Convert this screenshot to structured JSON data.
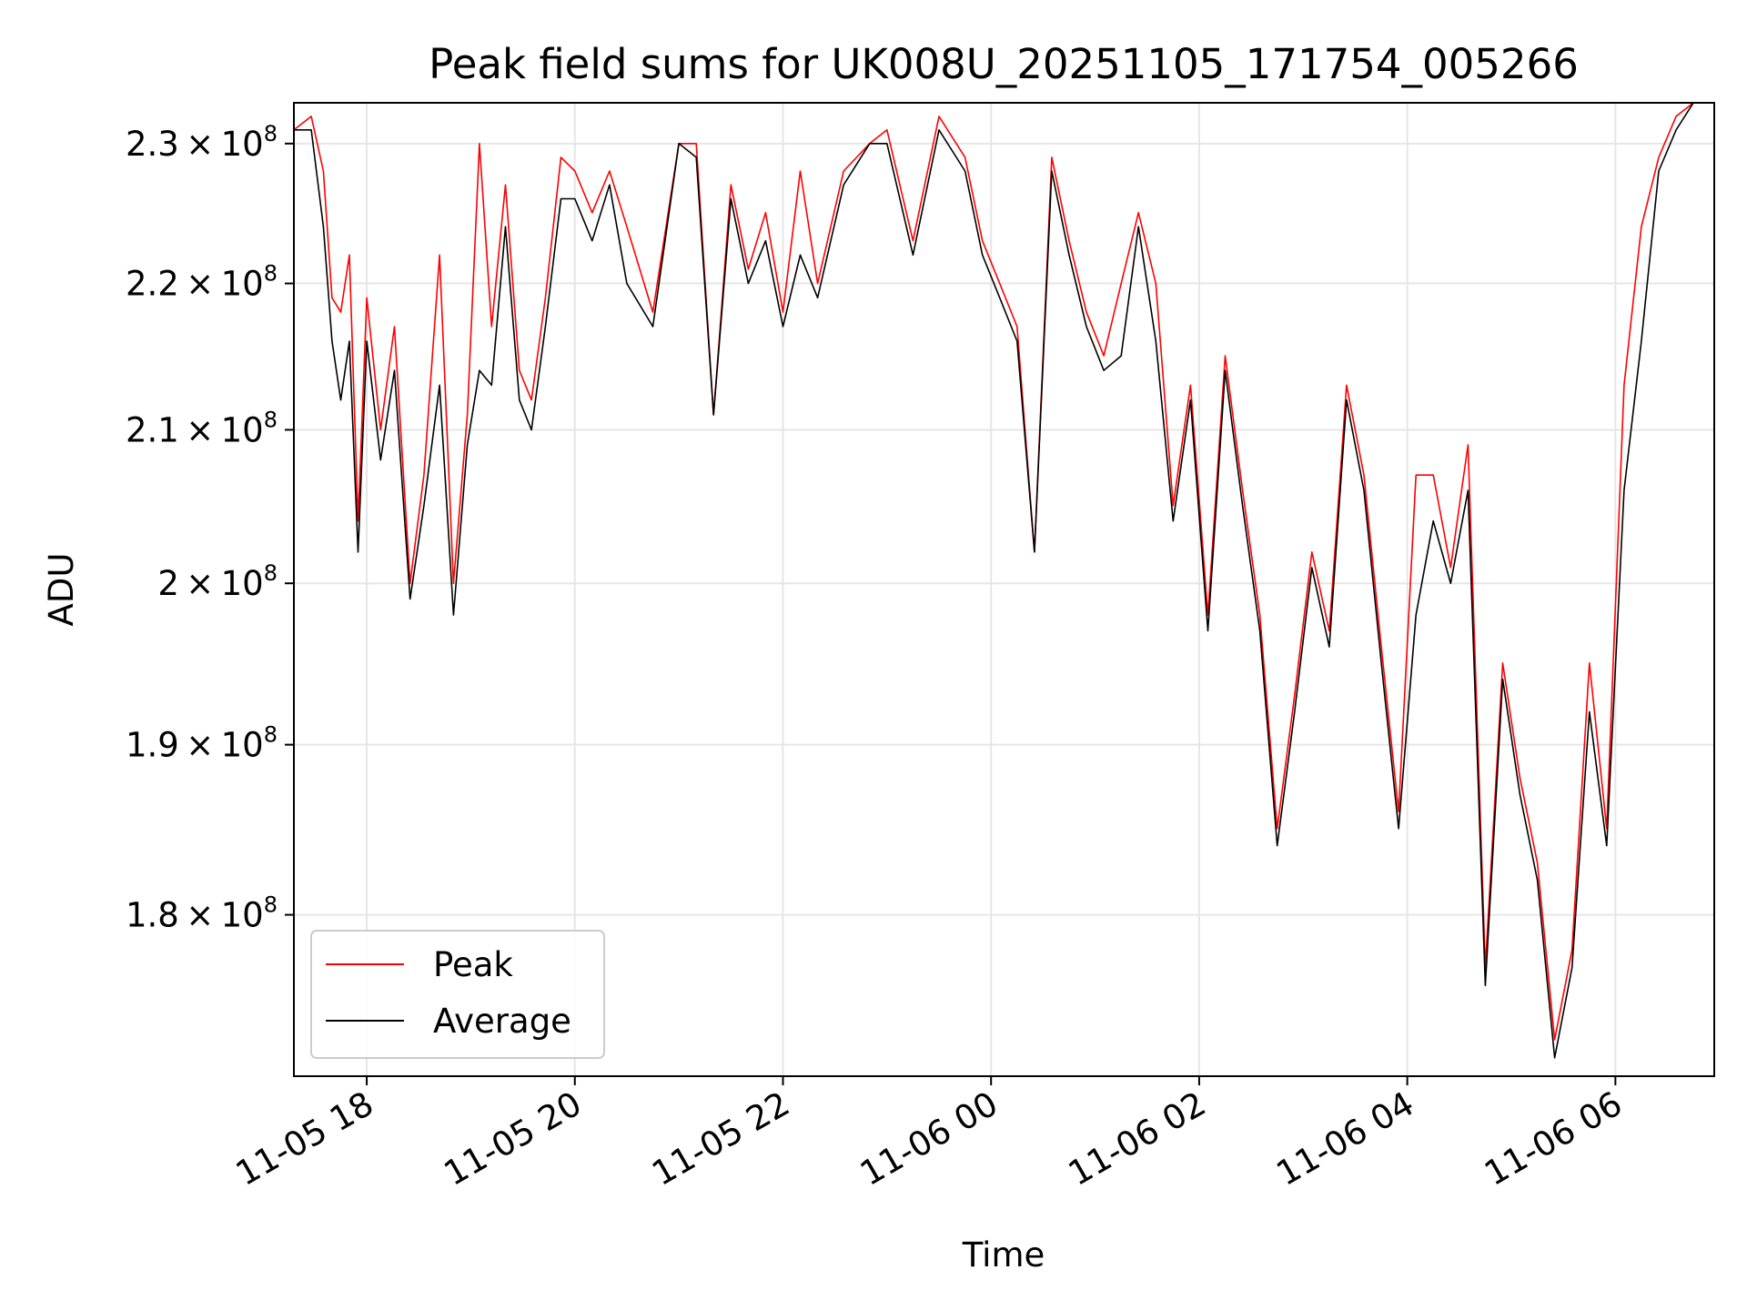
{
  "chart_data": {
    "type": "line",
    "title": "Peak field sums for UK008U_20251105_171754_005266",
    "xlabel": "Time",
    "ylabel": "ADU",
    "yscale": "log",
    "grid": true,
    "legend_position": "lower-left",
    "x_ticks": [
      "2025-11-05T18:00",
      "2025-11-05T20:00",
      "2025-11-05T22:00",
      "2025-11-06T00:00",
      "2025-11-06T02:00",
      "2025-11-06T04:00",
      "2025-11-06T06:00"
    ],
    "x_tick_labels": [
      "11-05 18",
      "11-05 20",
      "11-05 22",
      "11-06 00",
      "11-06 02",
      "11-06 04",
      "11-06 06"
    ],
    "xlim": [
      "2025-11-05T17:18",
      "2025-11-06T06:57"
    ],
    "y_ticks": [
      180000000.0,
      190000000.0,
      200000000.0,
      210000000.0,
      220000000.0,
      230000000.0
    ],
    "y_tick_labels": [
      {
        "mantissa": "1.8",
        "times": "×",
        "base": "10",
        "exp": "8"
      },
      {
        "mantissa": "1.9",
        "times": "×",
        "base": "10",
        "exp": "8"
      },
      {
        "mantissa": "2",
        "times": "×",
        "base": "10",
        "exp": "8"
      },
      {
        "mantissa": "2.1",
        "times": "×",
        "base": "10",
        "exp": "8"
      },
      {
        "mantissa": "2.2",
        "times": "×",
        "base": "10",
        "exp": "8"
      },
      {
        "mantissa": "2.3",
        "times": "×",
        "base": "10",
        "exp": "8"
      }
    ],
    "ylim": [
      171000000.0,
      233000000.0
    ],
    "series": [
      {
        "name": "Peak",
        "color": "#ff0000"
      },
      {
        "name": "Average",
        "color": "#000000"
      }
    ],
    "x": [
      "2025-11-05T17:18",
      "2025-11-05T17:28",
      "2025-11-05T17:35",
      "2025-11-05T17:40",
      "2025-11-05T17:45",
      "2025-11-05T17:50",
      "2025-11-05T17:55",
      "2025-11-05T18:00",
      "2025-11-05T18:08",
      "2025-11-05T18:16",
      "2025-11-05T18:25",
      "2025-11-05T18:33",
      "2025-11-05T18:42",
      "2025-11-05T18:50",
      "2025-11-05T18:58",
      "2025-11-05T19:05",
      "2025-11-05T19:12",
      "2025-11-05T19:20",
      "2025-11-05T19:28",
      "2025-11-05T19:35",
      "2025-11-05T19:43",
      "2025-11-05T19:52",
      "2025-11-05T20:00",
      "2025-11-05T20:10",
      "2025-11-05T20:20",
      "2025-11-05T20:30",
      "2025-11-05T20:45",
      "2025-11-05T21:00",
      "2025-11-05T21:10",
      "2025-11-05T21:20",
      "2025-11-05T21:30",
      "2025-11-05T21:40",
      "2025-11-05T21:50",
      "2025-11-05T22:00",
      "2025-11-05T22:10",
      "2025-11-05T22:20",
      "2025-11-05T22:35",
      "2025-11-05T22:50",
      "2025-11-05T23:00",
      "2025-11-05T23:15",
      "2025-11-05T23:30",
      "2025-11-05T23:45",
      "2025-11-05T23:55",
      "2025-11-06T00:05",
      "2025-11-06T00:15",
      "2025-11-06T00:25",
      "2025-11-06T00:35",
      "2025-11-06T00:45",
      "2025-11-06T00:55",
      "2025-11-06T01:05",
      "2025-11-06T01:15",
      "2025-11-06T01:25",
      "2025-11-06T01:35",
      "2025-11-06T01:45",
      "2025-11-06T01:55",
      "2025-11-06T02:05",
      "2025-11-06T02:15",
      "2025-11-06T02:25",
      "2025-11-06T02:35",
      "2025-11-06T02:45",
      "2025-11-06T02:55",
      "2025-11-06T03:05",
      "2025-11-06T03:15",
      "2025-11-06T03:25",
      "2025-11-06T03:35",
      "2025-11-06T03:45",
      "2025-11-06T03:55",
      "2025-11-06T04:05",
      "2025-11-06T04:15",
      "2025-11-06T04:25",
      "2025-11-06T04:35",
      "2025-11-06T04:45",
      "2025-11-06T04:55",
      "2025-11-06T05:05",
      "2025-11-06T05:15",
      "2025-11-06T05:25",
      "2025-11-06T05:35",
      "2025-11-06T05:45",
      "2025-11-06T05:55",
      "2025-11-06T06:05",
      "2025-11-06T06:15",
      "2025-11-06T06:25",
      "2025-11-06T06:35",
      "2025-11-06T06:45",
      "2025-11-06T06:55"
    ],
    "average": [
      231000000.0,
      231000000.0,
      224000000.0,
      216000000.0,
      212000000.0,
      216000000.0,
      202000000.0,
      216000000.0,
      208000000.0,
      214000000.0,
      199000000.0,
      205000000.0,
      213000000.0,
      198000000.0,
      209000000.0,
      214000000.0,
      213000000.0,
      224000000.0,
      212000000.0,
      210000000.0,
      217000000.0,
      226000000.0,
      226000000.0,
      223000000.0,
      227000000.0,
      220000000.0,
      217000000.0,
      230000000.0,
      229000000.0,
      211000000.0,
      226000000.0,
      220000000.0,
      223000000.0,
      217000000.0,
      222000000.0,
      219000000.0,
      227000000.0,
      230000000.0,
      230000000.0,
      222000000.0,
      231000000.0,
      228000000.0,
      222000000.0,
      219000000.0,
      216000000.0,
      202000000.0,
      228000000.0,
      222000000.0,
      217000000.0,
      214000000.0,
      215000000.0,
      224000000.0,
      216000000.0,
      204000000.0,
      212000000.0,
      197000000.0,
      214000000.0,
      205000000.0,
      197000000.0,
      184000000.0,
      192000000.0,
      201000000.0,
      196000000.0,
      212000000.0,
      206000000.0,
      195000000.0,
      185000000.0,
      198000000.0,
      204000000.0,
      200000000.0,
      206000000.0,
      176000000.0,
      194000000.0,
      187000000.0,
      182000000.0,
      172000000.0,
      177000000.0,
      192000000.0,
      184000000.0,
      206000000.0,
      216000000.0,
      228000000.0,
      231000000.0,
      233000000.0,
      233000000.0
    ],
    "peak": [
      231000000.0,
      232000000.0,
      228000000.0,
      219000000.0,
      218000000.0,
      222000000.0,
      204000000.0,
      219000000.0,
      210000000.0,
      217000000.0,
      200000000.0,
      207000000.0,
      222000000.0,
      200000000.0,
      211000000.0,
      230000000.0,
      217000000.0,
      227000000.0,
      214000000.0,
      212000000.0,
      219000000.0,
      229000000.0,
      228000000.0,
      225000000.0,
      228000000.0,
      224000000.0,
      218000000.0,
      230000000.0,
      230000000.0,
      211000000.0,
      227000000.0,
      221000000.0,
      225000000.0,
      218000000.0,
      228000000.0,
      220000000.0,
      228000000.0,
      230000000.0,
      231000000.0,
      223000000.0,
      232000000.0,
      229000000.0,
      223000000.0,
      220000000.0,
      217000000.0,
      202000000.0,
      229000000.0,
      223000000.0,
      218000000.0,
      215000000.0,
      220000000.0,
      225000000.0,
      220000000.0,
      205000000.0,
      213000000.0,
      198000000.0,
      215000000.0,
      206000000.0,
      198000000.0,
      185000000.0,
      193000000.0,
      202000000.0,
      197000000.0,
      213000000.0,
      207000000.0,
      196000000.0,
      186000000.0,
      207000000.0,
      207000000.0,
      201000000.0,
      209000000.0,
      177000000.0,
      195000000.0,
      188000000.0,
      183000000.0,
      173000000.0,
      178000000.0,
      195000000.0,
      185000000.0,
      213000000.0,
      224000000.0,
      229000000.0,
      232000000.0,
      233000000.0,
      233000000.0
    ]
  }
}
